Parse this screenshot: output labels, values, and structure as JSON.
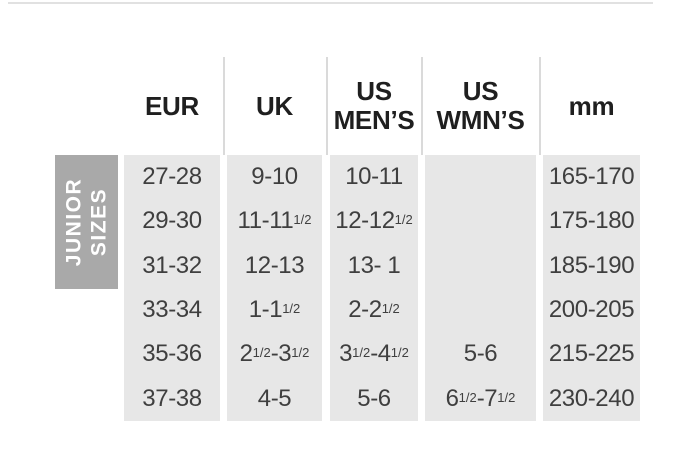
{
  "colors": {
    "cell_bg": "#e7e7e7",
    "side_label_bg": "#a9a9a9",
    "header_divider": "#dadada",
    "top_rule": "#e1e1e1",
    "header_text": "#1f1f1f",
    "body_text": "#3f3f3f"
  },
  "table": {
    "side_label": {
      "line1": "JUNIOR",
      "line2": "SIZES"
    },
    "columns": [
      {
        "id": "eur",
        "lines": [
          "EUR"
        ]
      },
      {
        "id": "uk",
        "lines": [
          "UK"
        ]
      },
      {
        "id": "us-mens",
        "lines": [
          "US",
          "MEN’S"
        ]
      },
      {
        "id": "us-wmns",
        "lines": [
          "US",
          "WMN’S"
        ]
      },
      {
        "id": "mm",
        "lines": [
          "mm"
        ]
      }
    ],
    "rows": [
      [
        "27-28",
        "9-10",
        "10-11",
        "",
        "165-170"
      ],
      [
        "29-30",
        "11-11^{1/2}",
        "12-12^{1/2}",
        "",
        "175-180"
      ],
      [
        "31-32",
        "12-13",
        "13- 1",
        "",
        "185-190"
      ],
      [
        "33-34",
        "1-1^{1/2}",
        "2-2^{1/2}",
        "",
        "200-205"
      ],
      [
        "35-36",
        "2^{1/2}-3^{1/2}",
        "3^{1/2}-4^{1/2}",
        "5-6",
        "215-225"
      ],
      [
        "37-38",
        "4-5",
        "5-6",
        "6^{1/2}-7^{1/2}",
        "230-240"
      ]
    ]
  }
}
